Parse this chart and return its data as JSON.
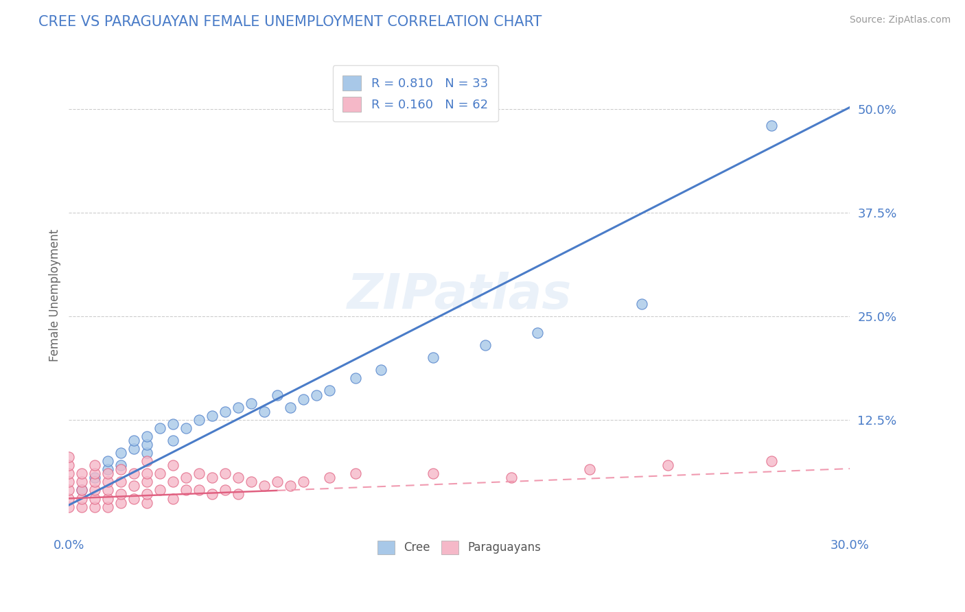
{
  "title": "CREE VS PARAGUAYAN FEMALE UNEMPLOYMENT CORRELATION CHART",
  "source": "Source: ZipAtlas.com",
  "ylabel": "Female Unemployment",
  "watermark": "ZIPatlas",
  "xlim": [
    0.0,
    0.3
  ],
  "ylim": [
    -0.01,
    0.56
  ],
  "yticks": [
    0.125,
    0.25,
    0.375,
    0.5
  ],
  "ytick_labels": [
    "12.5%",
    "25.0%",
    "37.5%",
    "50.0%"
  ],
  "cree_color": "#a8c8e8",
  "paraguayan_color": "#f5b8c8",
  "cree_line_color": "#4a7cc8",
  "paraguayan_line_solid_color": "#e06080",
  "paraguayan_line_dash_color": "#f09ab0",
  "legend_R_cree": "R = 0.810",
  "legend_N_cree": "N = 33",
  "legend_R_para": "R = 0.160",
  "legend_N_para": "N = 62",
  "cree_x": [
    0.005,
    0.01,
    0.015,
    0.015,
    0.02,
    0.02,
    0.025,
    0.025,
    0.03,
    0.03,
    0.03,
    0.035,
    0.04,
    0.04,
    0.045,
    0.05,
    0.055,
    0.06,
    0.065,
    0.07,
    0.075,
    0.08,
    0.085,
    0.09,
    0.095,
    0.1,
    0.11,
    0.12,
    0.14,
    0.16,
    0.18,
    0.22,
    0.27
  ],
  "cree_y": [
    0.04,
    0.055,
    0.065,
    0.075,
    0.07,
    0.085,
    0.09,
    0.1,
    0.085,
    0.095,
    0.105,
    0.115,
    0.1,
    0.12,
    0.115,
    0.125,
    0.13,
    0.135,
    0.14,
    0.145,
    0.135,
    0.155,
    0.14,
    0.15,
    0.155,
    0.16,
    0.175,
    0.185,
    0.2,
    0.215,
    0.23,
    0.265,
    0.48
  ],
  "para_x": [
    0.0,
    0.0,
    0.0,
    0.0,
    0.0,
    0.0,
    0.0,
    0.005,
    0.005,
    0.005,
    0.005,
    0.005,
    0.01,
    0.01,
    0.01,
    0.01,
    0.01,
    0.01,
    0.015,
    0.015,
    0.015,
    0.015,
    0.015,
    0.02,
    0.02,
    0.02,
    0.02,
    0.025,
    0.025,
    0.025,
    0.03,
    0.03,
    0.03,
    0.03,
    0.03,
    0.035,
    0.035,
    0.04,
    0.04,
    0.04,
    0.045,
    0.045,
    0.05,
    0.05,
    0.055,
    0.055,
    0.06,
    0.06,
    0.065,
    0.065,
    0.07,
    0.075,
    0.08,
    0.085,
    0.09,
    0.1,
    0.11,
    0.14,
    0.17,
    0.2,
    0.23,
    0.27
  ],
  "para_y": [
    0.02,
    0.03,
    0.04,
    0.05,
    0.06,
    0.07,
    0.08,
    0.02,
    0.03,
    0.04,
    0.05,
    0.06,
    0.02,
    0.03,
    0.04,
    0.05,
    0.06,
    0.07,
    0.02,
    0.03,
    0.04,
    0.05,
    0.06,
    0.025,
    0.035,
    0.05,
    0.065,
    0.03,
    0.045,
    0.06,
    0.025,
    0.035,
    0.05,
    0.06,
    0.075,
    0.04,
    0.06,
    0.03,
    0.05,
    0.07,
    0.04,
    0.055,
    0.04,
    0.06,
    0.035,
    0.055,
    0.04,
    0.06,
    0.035,
    0.055,
    0.05,
    0.045,
    0.05,
    0.045,
    0.05,
    0.055,
    0.06,
    0.06,
    0.055,
    0.065,
    0.07,
    0.075
  ],
  "background_color": "#ffffff",
  "grid_color": "#cccccc",
  "title_color": "#4a7cc8",
  "tick_color": "#4a7cc8",
  "axis_label_color": "#666666",
  "cree_line_intercept": 0.022,
  "cree_line_slope": 1.6,
  "para_line_intercept": 0.03,
  "para_line_slope": 0.12
}
